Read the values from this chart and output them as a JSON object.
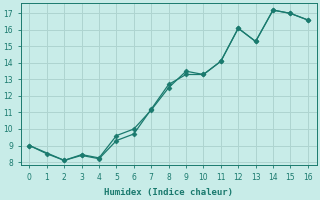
{
  "line1_x": [
    0,
    1,
    2,
    3,
    4,
    5,
    6,
    7,
    8,
    9,
    10,
    11,
    12,
    13,
    14,
    15,
    16
  ],
  "line1_y": [
    9.0,
    8.5,
    8.1,
    8.4,
    8.2,
    9.3,
    9.7,
    11.2,
    12.7,
    13.3,
    13.3,
    14.1,
    16.1,
    15.3,
    17.2,
    17.0,
    16.6
  ],
  "line2_x": [
    0,
    2,
    3,
    4,
    5,
    6,
    7,
    8,
    9,
    10,
    11,
    12,
    13,
    14,
    15,
    16
  ],
  "line2_y": [
    9.0,
    8.1,
    8.45,
    8.25,
    9.6,
    10.0,
    11.15,
    12.5,
    13.5,
    13.3,
    14.1,
    16.1,
    15.3,
    17.2,
    17.0,
    16.6
  ],
  "line_color": "#1a7a6e",
  "bg_color": "#c8ece8",
  "grid_color": "#aed4d0",
  "xlabel": "Humidex (Indice chaleur)",
  "ylim": [
    7.8,
    17.6
  ],
  "xlim": [
    -0.5,
    16.5
  ],
  "yticks": [
    8,
    9,
    10,
    11,
    12,
    13,
    14,
    15,
    16,
    17
  ],
  "xticks": [
    0,
    1,
    2,
    3,
    4,
    5,
    6,
    7,
    8,
    9,
    10,
    11,
    12,
    13,
    14,
    15,
    16
  ],
  "markersize": 2.5,
  "linewidth": 0.9
}
